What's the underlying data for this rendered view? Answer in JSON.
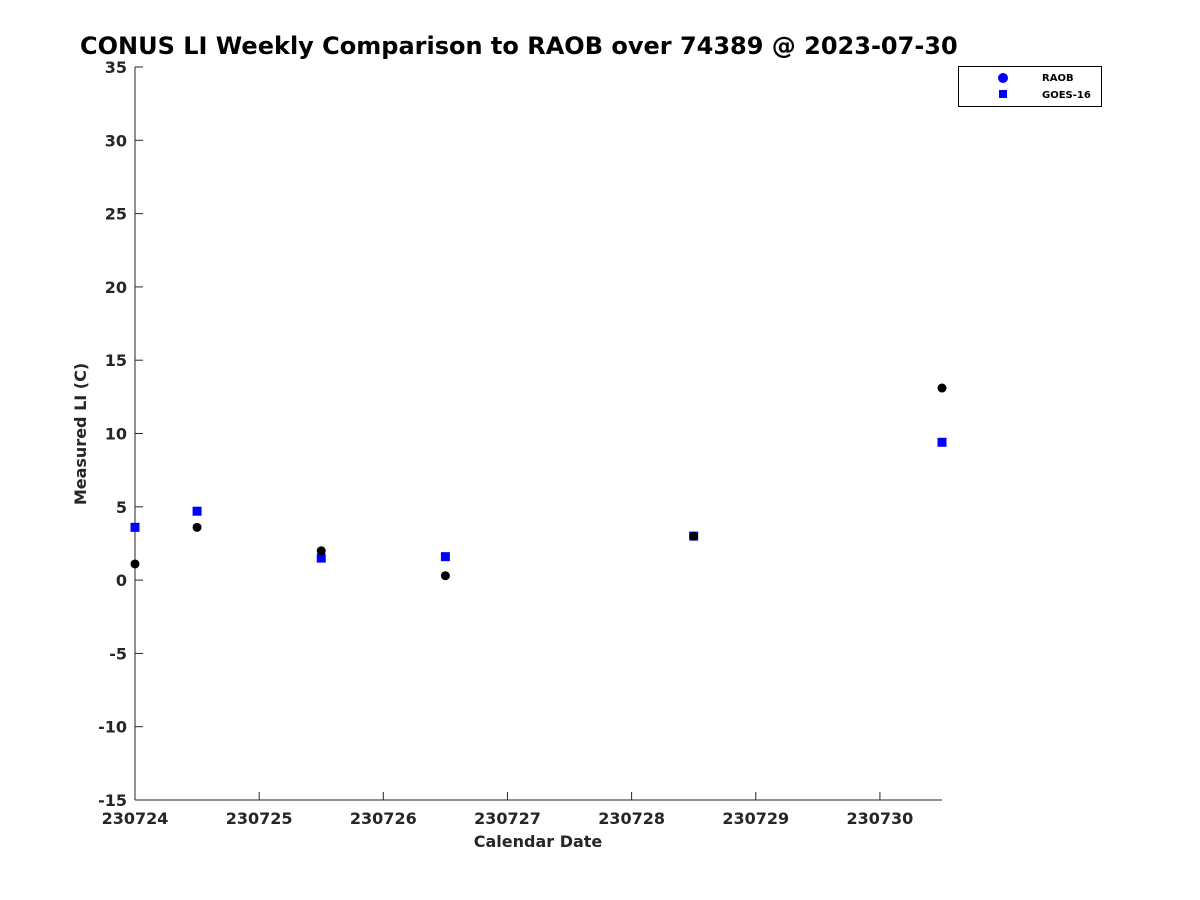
{
  "chart_data": {
    "type": "scatter",
    "title": "CONUS LI Weekly Comparison to RAOB over 74389 @ 2023-07-30",
    "xlabel": "Calendar Date",
    "ylabel": "Measured LI (C)",
    "xlim": [
      "230724",
      "230730.5"
    ],
    "ylim": [
      -15,
      35
    ],
    "x_ticks": [
      "230724",
      "230725",
      "230726",
      "230727",
      "230728",
      "230729",
      "230730"
    ],
    "y_ticks": [
      -15,
      -10,
      -5,
      0,
      5,
      10,
      15,
      20,
      25,
      30,
      35
    ],
    "grid": false,
    "legend_position": "top-right",
    "series": [
      {
        "name": "RAOB",
        "marker": "circle",
        "color": "#0000ff",
        "point_color": "#000000",
        "x": [
          230724.0,
          230724.5,
          230725.5,
          230726.5,
          230728.5,
          230730.5
        ],
        "y": [
          1.1,
          3.6,
          2.0,
          0.3,
          3.0,
          13.1
        ]
      },
      {
        "name": "GOES-16",
        "marker": "square",
        "color": "#0000ff",
        "point_color": "#0000ff",
        "x": [
          230724.0,
          230724.5,
          230725.5,
          230726.5,
          230728.5,
          230730.5
        ],
        "y": [
          3.6,
          4.7,
          1.5,
          1.6,
          3.0,
          9.4
        ]
      }
    ]
  }
}
